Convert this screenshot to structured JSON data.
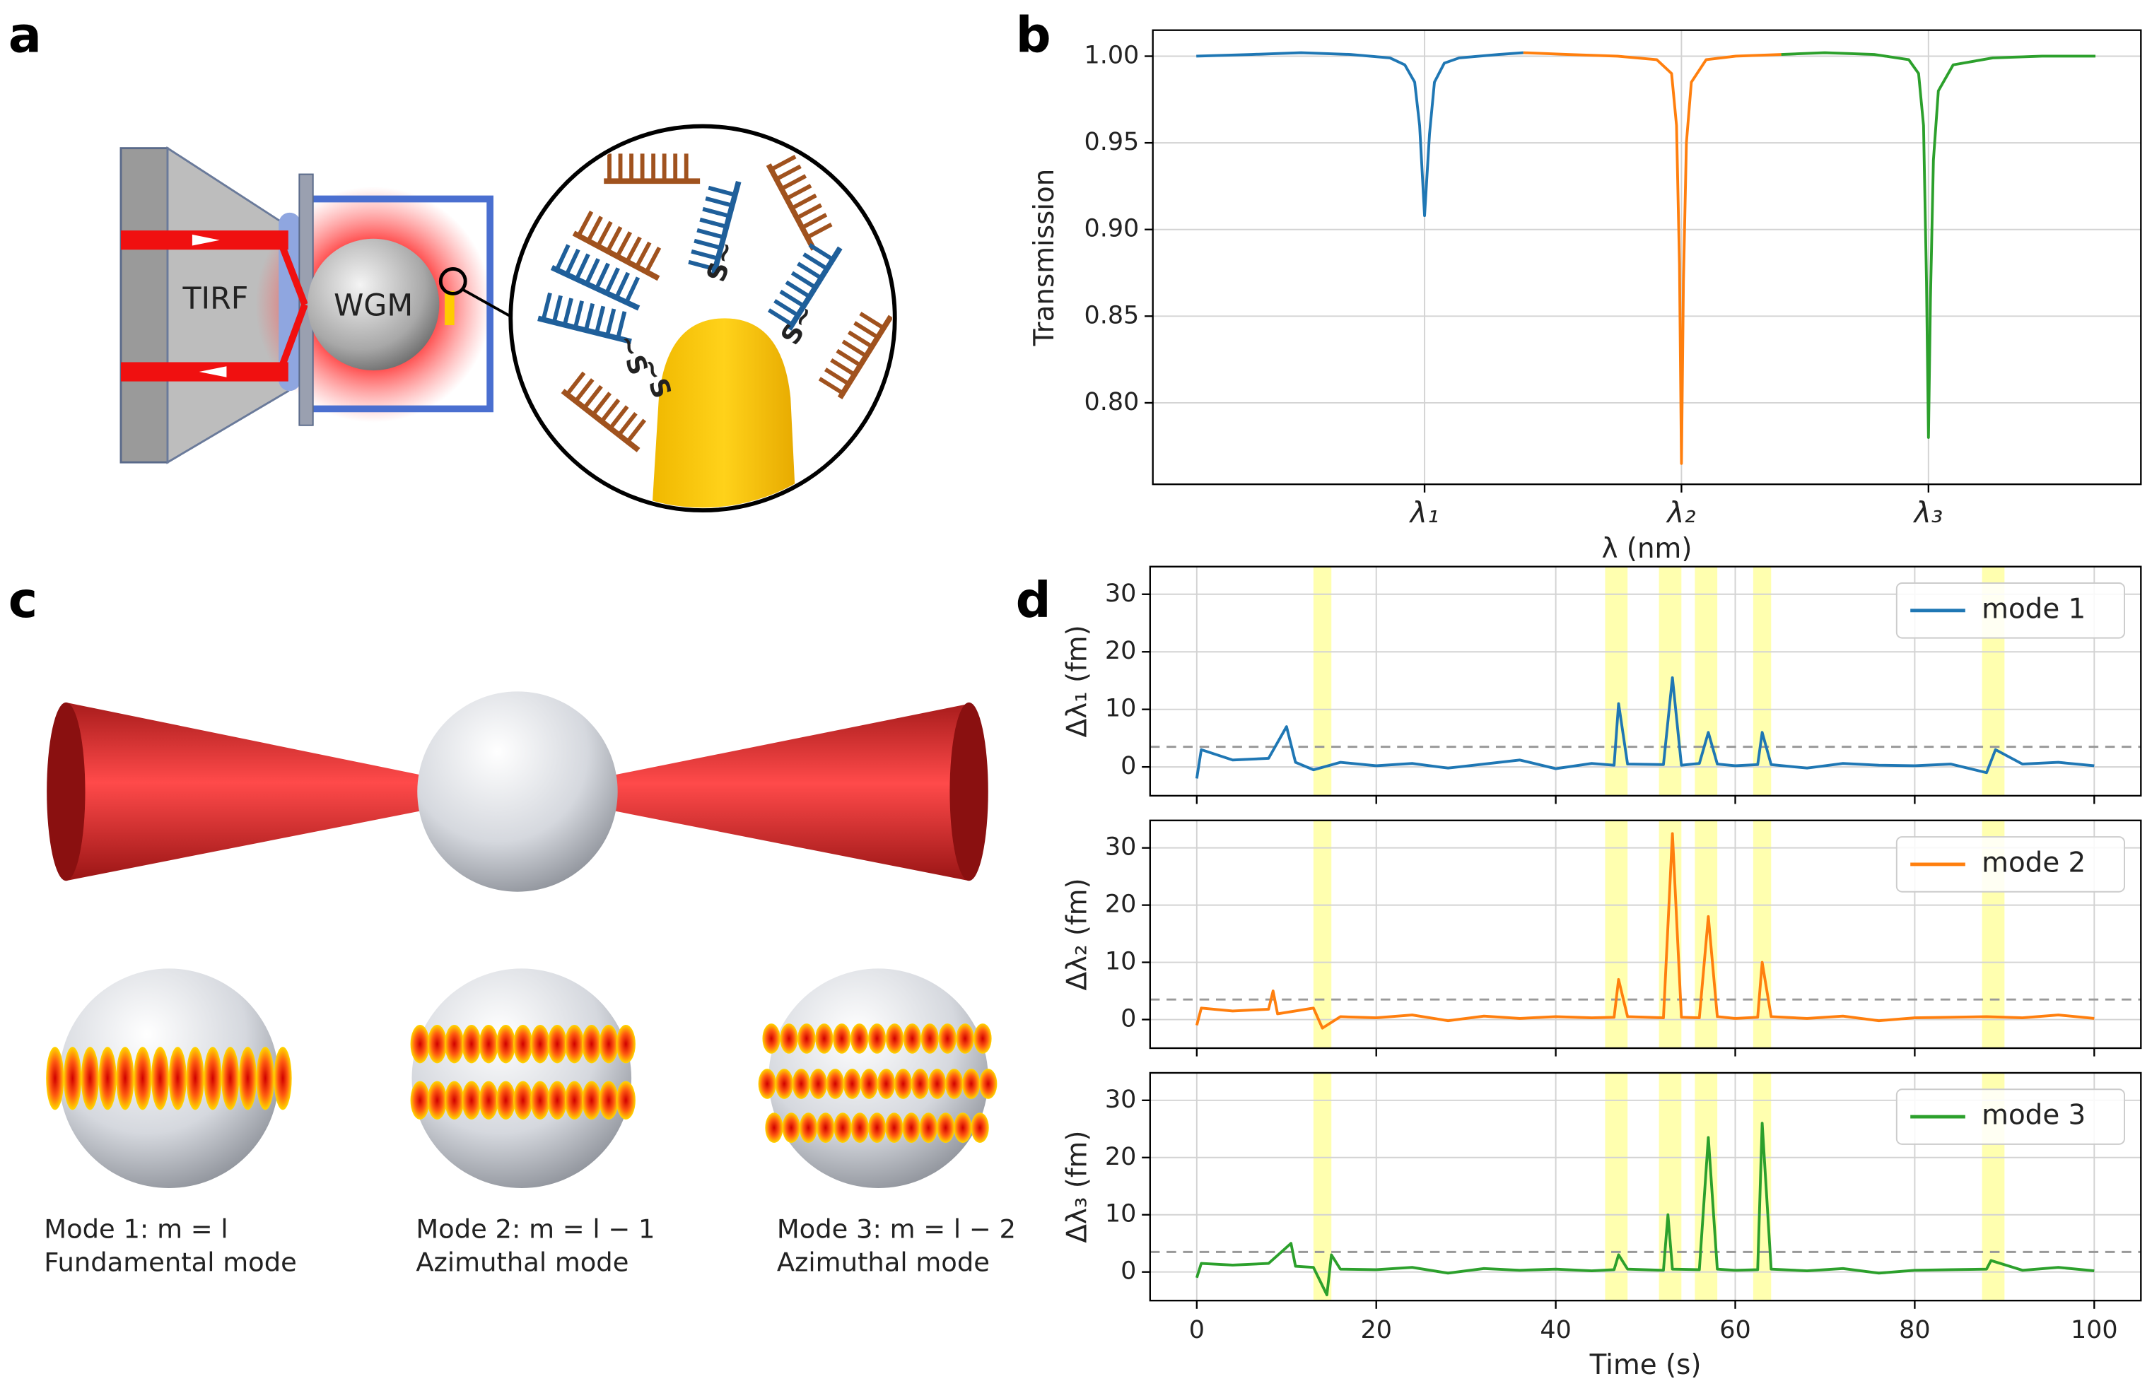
{
  "panel_labels": [
    "a",
    "b",
    "c",
    "d"
  ],
  "diagram_a": {
    "labels": [
      "TIRF",
      "WGM"
    ],
    "thiol_labels": [
      "~S",
      "~S",
      "S~",
      "S~"
    ]
  },
  "diagram_c": {
    "modes": [
      {
        "name": "Mode 1: m = l",
        "description": "Fundamental mode"
      },
      {
        "name": "Mode 2: m = l − 1",
        "description": "Azimuthal mode"
      },
      {
        "name": "Mode 3: m = l − 2",
        "description": "Azimuthal mode"
      }
    ]
  },
  "chart_data": [
    {
      "type": "line",
      "ylabel": "Transmission",
      "xlabel": "λ (nm)",
      "xlim": [
        0,
        100
      ],
      "ylim": [
        0.753,
        1.015
      ],
      "xticks": [
        {
          "value": 27.5,
          "label": "λ₁"
        },
        {
          "value": 53.5,
          "label": "λ₂"
        },
        {
          "value": 78.5,
          "label": "λ₃"
        }
      ],
      "yticks": [
        {
          "value": 0.8,
          "label": "0.80"
        },
        {
          "value": 0.85,
          "label": "0.85"
        },
        {
          "value": 0.9,
          "label": "0.90"
        },
        {
          "value": 0.95,
          "label": "0.95"
        },
        {
          "value": 1.0,
          "label": "1.00"
        }
      ],
      "grid": true,
      "series": [
        {
          "color": "#1f77b4",
          "x": [
            4.4,
            10,
            15,
            20,
            24,
            25.5,
            26.5,
            27,
            27.5,
            28,
            28.5,
            29.5,
            31,
            35,
            37.5
          ],
          "values": [
            1.0,
            1.001,
            1.002,
            1.001,
            0.999,
            0.995,
            0.985,
            0.96,
            0.908,
            0.955,
            0.985,
            0.996,
            0.999,
            1.001,
            1.002
          ]
        },
        {
          "color": "#ff7f0e",
          "x": [
            37.5,
            42,
            47,
            51,
            52.5,
            53,
            53.3,
            53.5,
            53.7,
            54,
            54.5,
            56,
            59,
            63.6
          ],
          "values": [
            1.002,
            1.001,
            1.0,
            0.998,
            0.99,
            0.96,
            0.88,
            0.765,
            0.87,
            0.95,
            0.985,
            0.998,
            1.0,
            1.001
          ]
        },
        {
          "color": "#2ca02c",
          "x": [
            63.6,
            68,
            73,
            76.5,
            77.5,
            78,
            78.3,
            78.5,
            78.7,
            79,
            79.5,
            81,
            85,
            90,
            95.4
          ],
          "values": [
            1.001,
            1.002,
            1.001,
            0.998,
            0.99,
            0.96,
            0.87,
            0.78,
            0.86,
            0.94,
            0.98,
            0.995,
            0.999,
            1.0,
            1.0
          ]
        }
      ]
    },
    {
      "type": "line",
      "ylabel": "Δλ₁ (fm)",
      "xlim": [
        -5.2,
        105.2
      ],
      "ylim": [
        -5,
        34.8
      ],
      "xticks": [
        0,
        20,
        40,
        60,
        80,
        100
      ],
      "yticks": [
        0,
        10,
        20,
        30
      ],
      "grid": true,
      "legend": "upper right",
      "threshold": 3.5,
      "highlights": [
        [
          13,
          15
        ],
        [
          45.5,
          48
        ],
        [
          51.5,
          54
        ],
        [
          55.5,
          58
        ],
        [
          62,
          64
        ],
        [
          87.5,
          90
        ]
      ],
      "x": [
        0,
        0.5,
        4,
        8,
        10,
        11,
        13,
        16,
        20,
        24,
        28,
        32,
        36,
        40,
        44,
        46.5,
        47,
        48,
        52,
        53,
        54,
        56,
        57,
        58,
        60,
        62.5,
        63,
        64,
        68,
        72,
        76,
        80,
        84,
        88,
        89,
        92,
        96,
        100
      ],
      "series": [
        {
          "name": "mode 1",
          "color": "#1f77b4",
          "values": [
            -2,
            3,
            1.2,
            1.5,
            7,
            0.8,
            -0.5,
            0.8,
            0.2,
            0.6,
            -0.2,
            0.5,
            1.2,
            -0.3,
            0.6,
            0.3,
            11,
            0.5,
            0.4,
            15.5,
            0.3,
            0.6,
            6,
            0.5,
            0.2,
            0.4,
            6,
            0.4,
            -0.2,
            0.6,
            0.3,
            0.2,
            0.5,
            -1,
            3,
            0.5,
            0.8,
            0.2
          ]
        }
      ]
    },
    {
      "type": "line",
      "ylabel": "Δλ₂ (fm)",
      "xlim": [
        -5.2,
        105.2
      ],
      "ylim": [
        -5,
        34.8
      ],
      "xticks": [
        0,
        20,
        40,
        60,
        80,
        100
      ],
      "yticks": [
        0,
        10,
        20,
        30
      ],
      "grid": true,
      "legend": "upper right",
      "threshold": 3.5,
      "highlights": [
        [
          13,
          15
        ],
        [
          45.5,
          48
        ],
        [
          51.5,
          54
        ],
        [
          55.5,
          58
        ],
        [
          62,
          64
        ],
        [
          87.5,
          90
        ]
      ],
      "x": [
        0,
        0.5,
        4,
        8,
        8.5,
        9,
        13,
        14,
        16,
        20,
        24,
        28,
        32,
        36,
        40,
        44,
        46.5,
        47,
        48,
        52,
        53,
        54,
        56,
        57,
        58,
        60,
        62.5,
        63,
        64,
        68,
        72,
        76,
        80,
        84,
        88,
        92,
        96,
        100
      ],
      "series": [
        {
          "name": "mode 2",
          "color": "#ff7f0e",
          "values": [
            -1,
            2,
            1.5,
            1.8,
            5,
            1,
            2,
            -1.5,
            0.5,
            0.3,
            0.8,
            -0.2,
            0.6,
            0.2,
            0.5,
            0.3,
            0.4,
            7,
            0.5,
            0.3,
            32.5,
            0.4,
            0.3,
            18,
            0.5,
            0.2,
            0.4,
            10,
            0.5,
            0.2,
            0.6,
            -0.2,
            0.3,
            0.4,
            0.5,
            0.3,
            0.8,
            0.2
          ]
        }
      ]
    },
    {
      "type": "line",
      "ylabel": "Δλ₃ (fm)",
      "xlabel": "Time (s)",
      "xlim": [
        -5.2,
        105.2
      ],
      "ylim": [
        -5,
        34.8
      ],
      "xticks": [
        0,
        20,
        40,
        60,
        80,
        100
      ],
      "yticks": [
        0,
        10,
        20,
        30
      ],
      "grid": true,
      "legend": "upper right",
      "threshold": 3.5,
      "highlights": [
        [
          13,
          15
        ],
        [
          45.5,
          48
        ],
        [
          51.5,
          54
        ],
        [
          55.5,
          58
        ],
        [
          62,
          64
        ],
        [
          87.5,
          90
        ]
      ],
      "x": [
        0,
        0.5,
        4,
        8,
        10.5,
        11,
        13,
        14.5,
        15,
        16,
        20,
        24,
        28,
        32,
        36,
        40,
        44,
        46.5,
        47,
        48,
        52,
        52.5,
        53,
        56,
        57,
        58,
        60,
        62.5,
        63,
        64,
        68,
        72,
        76,
        80,
        84,
        88,
        88.5,
        92,
        96,
        100
      ],
      "series": [
        {
          "name": "mode 3",
          "color": "#2ca02c",
          "values": [
            -1,
            1.5,
            1.2,
            1.5,
            5,
            1,
            0.8,
            -4,
            3,
            0.5,
            0.4,
            0.8,
            -0.2,
            0.6,
            0.3,
            0.5,
            0.2,
            0.4,
            3,
            0.5,
            0.3,
            10,
            0.5,
            0.4,
            23.5,
            0.5,
            0.3,
            0.4,
            26,
            0.5,
            0.2,
            0.6,
            -0.2,
            0.3,
            0.4,
            0.5,
            2,
            0.3,
            0.8,
            0.2
          ]
        }
      ]
    }
  ]
}
